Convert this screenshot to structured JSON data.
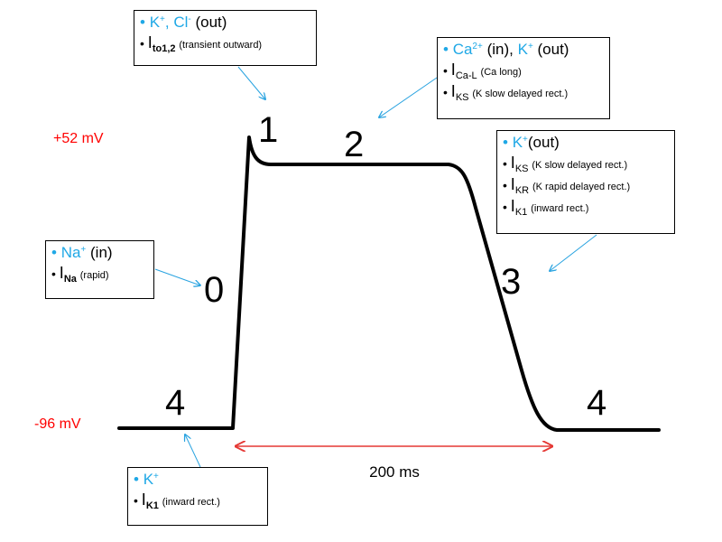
{
  "voltages": {
    "peak": "+52 mV",
    "rest": "-96 mV"
  },
  "duration": "200 ms",
  "phases": {
    "p0": "0",
    "p1": "1",
    "p2": "2",
    "p3": "3",
    "p4_left": "4",
    "p4_right": "4"
  },
  "colors": {
    "ion_text": "#1fa8e6",
    "voltage_text": "#ff0000",
    "duration_arrow": "#e53935",
    "pointer_arrow": "#29a3e0",
    "trace": "#000000"
  },
  "boxes": {
    "phase1": {
      "ions": [
        {
          "name": "K",
          "charge": "+",
          "direction": ""
        },
        {
          "name": "Cl",
          "charge": "-",
          "direction": "(out)"
        }
      ],
      "currents": [
        {
          "symbol": "I",
          "subscript": "to1,2",
          "description": "(transient outward)"
        }
      ]
    },
    "phase2": {
      "ions": [
        {
          "name": "Ca",
          "charge": "2+",
          "direction": "(in)"
        },
        {
          "name": "K",
          "charge": "+",
          "direction": "(out)"
        }
      ],
      "currents": [
        {
          "symbol": "I",
          "subscript": "Ca-L",
          "description": "(Ca  long)"
        },
        {
          "symbol": "I",
          "subscript": "KS",
          "description": "(K slow delayed rect.)"
        }
      ]
    },
    "phase3": {
      "ions": [
        {
          "name": "K",
          "charge": "+",
          "direction": "(out)"
        }
      ],
      "currents": [
        {
          "symbol": "I",
          "subscript": "KS",
          "description": "(K slow delayed rect.)"
        },
        {
          "symbol": "I",
          "subscript": "KR",
          "description": "(K rapid delayed rect.)"
        },
        {
          "symbol": "I",
          "subscript": "K1",
          "description": "(inward rect.)"
        }
      ]
    },
    "phase0": {
      "ions": [
        {
          "name": "Na",
          "charge": "+",
          "direction": "(in)"
        }
      ],
      "currents": [
        {
          "symbol": "I",
          "subscript": "Na",
          "description": "(rapid)"
        }
      ]
    },
    "phase4": {
      "ions": [
        {
          "name": "K",
          "charge": "+",
          "direction": ""
        }
      ],
      "currents": [
        {
          "symbol": "I",
          "subscript": "K1",
          "description": "(inward rect.)"
        }
      ]
    }
  }
}
